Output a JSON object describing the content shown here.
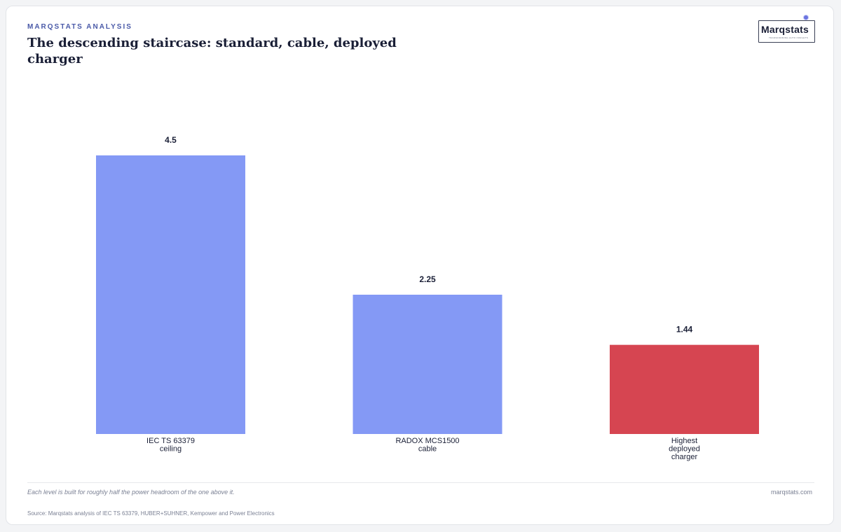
{
  "header": {
    "kicker": "MARQSTATS ANALYSIS",
    "title": "The descending staircase: standard, cable, deployed charger"
  },
  "logo": {
    "wordmark": "Marqstats",
    "tagline": "TRANSFORMING AUTO INSIGHTS"
  },
  "chart_data": {
    "type": "bar",
    "categories": [
      [
        "IEC TS 63379",
        "ceiling"
      ],
      [
        "RADOX MCS1500",
        "cable"
      ],
      [
        "Highest",
        "deployed",
        "charger"
      ]
    ],
    "values": [
      4.5,
      2.25,
      1.44
    ],
    "value_labels": [
      "4.5",
      "2.25",
      "1.44"
    ],
    "colors": [
      "#8499f5",
      "#8499f5",
      "#d64551"
    ],
    "ylim": [
      0,
      4.5
    ],
    "grid": false,
    "xlabel": "",
    "ylabel": ""
  },
  "footer": {
    "note": "Each level is built for roughly half the power headroom of the one above it.",
    "site": "marqstats.com",
    "source": "Source: Marqstats analysis of IEC TS 63379, HUBER+SUHNER, Kempower and Power Electronics"
  }
}
